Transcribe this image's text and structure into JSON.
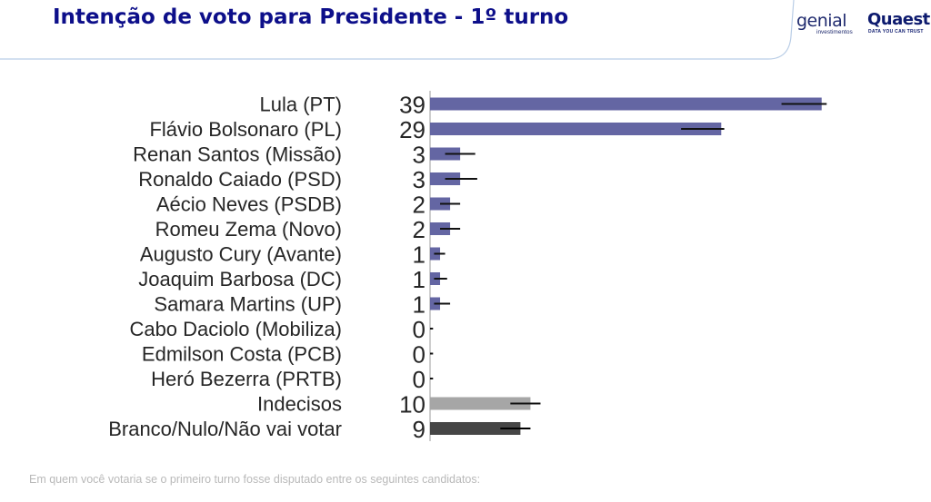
{
  "header": {
    "title": "Intenção de voto para Presidente - 1º turno",
    "logo_genial": "genial",
    "logo_genial_sub": "investimentos",
    "logo_quaest": "Quaest",
    "logo_quaest_sub": "DATA YOU CAN TRUST"
  },
  "footer": {
    "question": "Em quem você votaria se o primeiro turno fosse disputado entre os seguintes candidatos:"
  },
  "colors": {
    "title": "#0d0f8a",
    "candidate_bar": "#6466a3",
    "undecided_bar": "#a6a6a6",
    "null_bar": "#464646",
    "error_bar": "#000000"
  },
  "chart_data": {
    "type": "bar",
    "orientation": "horizontal",
    "title": "",
    "xlabel": "",
    "ylabel": "",
    "xlim": [
      0,
      45
    ],
    "grid": false,
    "legend": "none",
    "categories": [
      "Lula (PT)",
      "Flávio Bolsonaro (PL)",
      "Renan Santos (Missão)",
      "Ronaldo Caiado (PSD)",
      "Aécio Neves (PSDB)",
      "Romeu Zema (Novo)",
      "Augusto Cury (Avante)",
      "Joaquim Barbosa (DC)",
      "Samara Martins (UP)",
      "Cabo Daciolo (Mobiliza)",
      "Edmilson Costa (PCB)",
      "Heró Bezerra (PRTB)",
      "Indecisos",
      "Branco/Nulo/Não vai votar"
    ],
    "values": [
      39,
      29,
      3,
      3,
      2,
      2,
      1,
      1,
      1,
      0,
      0,
      0,
      10,
      9
    ],
    "value_labels": [
      "39",
      "29",
      "3",
      "3",
      "2",
      "2",
      "1",
      "1",
      "1",
      "0",
      "0",
      "0",
      "10",
      "9"
    ],
    "error_low": [
      35,
      25,
      1.5,
      1.5,
      1,
      1,
      0.4,
      0.4,
      0.4,
      0,
      0,
      0,
      8,
      7
    ],
    "error_high": [
      39.5,
      29.3,
      4.5,
      4.7,
      3,
      3,
      1.5,
      1.7,
      2,
      0.3,
      0.3,
      0.3,
      11,
      10
    ],
    "bar_colors": [
      "#6466a3",
      "#6466a3",
      "#6466a3",
      "#6466a3",
      "#6466a3",
      "#6466a3",
      "#6466a3",
      "#6466a3",
      "#6466a3",
      "#6466a3",
      "#6466a3",
      "#6466a3",
      "#a6a6a6",
      "#464646"
    ]
  }
}
